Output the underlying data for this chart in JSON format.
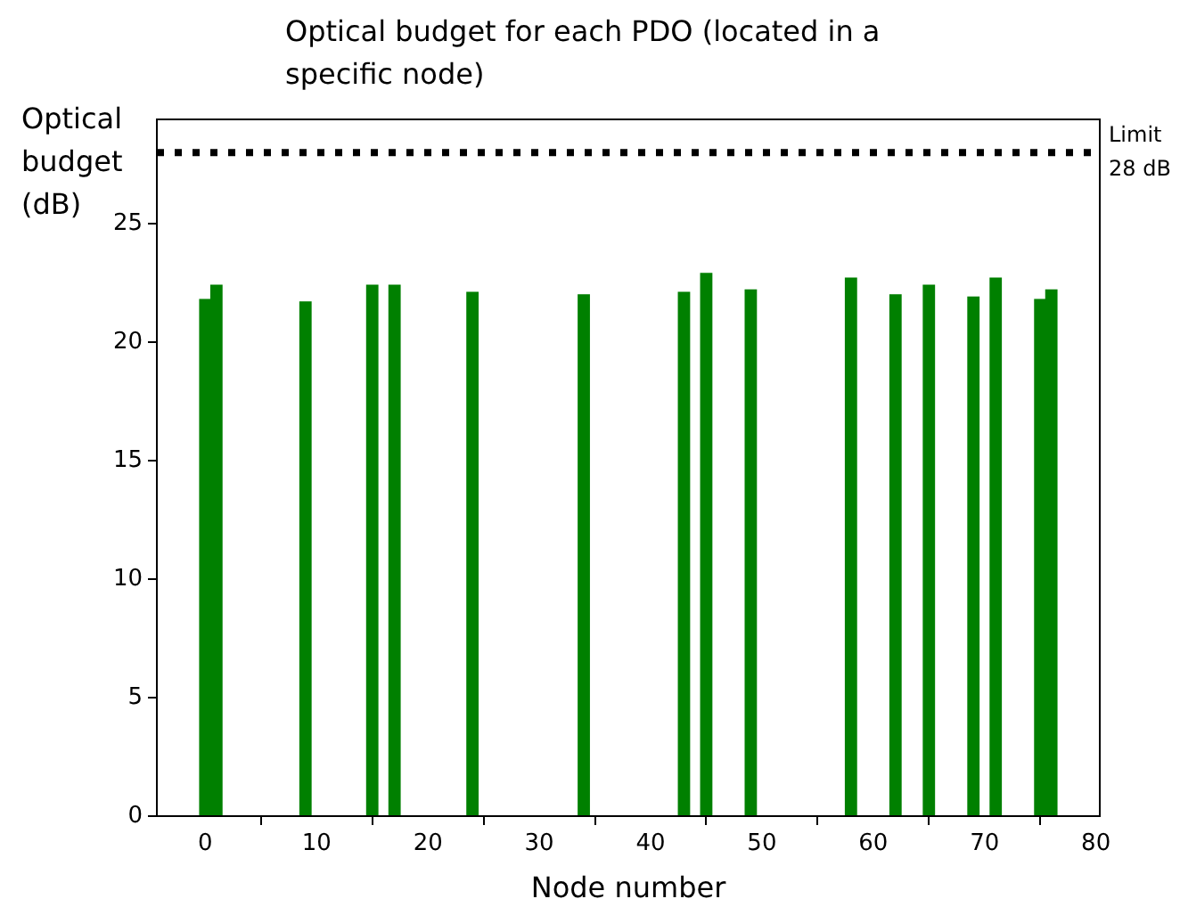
{
  "chart_data": {
    "type": "bar",
    "title": "Optical budget for each PDO (located in a specific node)",
    "xlabel": "Node number",
    "ylabel": "Optical budget (dB)",
    "x": [
      0,
      1,
      9,
      15,
      17,
      24,
      34,
      43,
      45,
      49,
      58,
      62,
      65,
      69,
      71,
      75,
      76
    ],
    "values": [
      21.8,
      22.4,
      21.7,
      22.4,
      22.4,
      22.1,
      22.0,
      22.1,
      22.9,
      22.2,
      22.7,
      22.0,
      22.4,
      21.9,
      22.7,
      21.8,
      22.2
    ],
    "color": "#008000",
    "xlim": [
      -4.35,
      80.35
    ],
    "xticks": [
      0,
      10,
      20,
      30,
      40,
      50,
      60,
      70,
      80
    ],
    "ylim": [
      0,
      29.4
    ],
    "yticks": [
      0,
      5,
      10,
      15,
      20,
      25
    ],
    "ref_lines": [
      {
        "axis": "y",
        "value": 28,
        "label": "Limit\n28 dB",
        "color": "#000000",
        "line_style": "dotted"
      }
    ],
    "grid": false
  }
}
